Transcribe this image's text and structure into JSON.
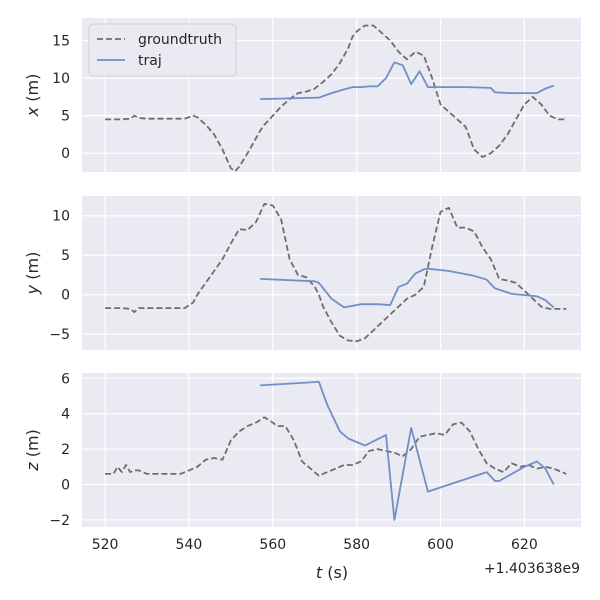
{
  "chart_data": {
    "type": "line",
    "shared_x": {
      "label": "t (s)",
      "label_var": "t",
      "label_unit": " (s)",
      "range": [
        514.5,
        633.5
      ],
      "ticks": [
        520,
        540,
        560,
        580,
        600,
        620
      ],
      "tick_labels": [
        "520",
        "540",
        "560",
        "580",
        "600",
        "620"
      ],
      "offset_text": "+1.403638e9"
    },
    "legend": {
      "placement": "top-left",
      "entries": [
        "groundtruth",
        "traj"
      ]
    },
    "grid": true,
    "colors": {
      "background": "#eaeaf2",
      "grid": "#ffffff",
      "groundtruth": "#6e6e6e",
      "traj": "#6f8fc6"
    },
    "series_styles": {
      "groundtruth": "dashed",
      "traj": "solid"
    },
    "panels": [
      {
        "ylabel": "x (m)",
        "ylabel_var": "x",
        "ylabel_unit": " (m)",
        "ylim": [
          -2.5,
          18.0
        ],
        "yticks": [
          0,
          5,
          10,
          15
        ],
        "ytick_labels": [
          "0",
          "5",
          "10",
          "15"
        ],
        "series": [
          {
            "name": "groundtruth",
            "x": [
              520,
              522,
              524,
              526,
              527,
              528,
              530,
              533,
              536,
              539,
              541,
              542,
              544,
              546,
              548,
              550,
              551,
              552,
              554,
              556,
              557,
              558,
              560,
              562,
              564,
              566,
              568,
              570,
              572,
              574,
              576,
              578,
              579,
              580,
              582,
              584,
              586,
              588,
              590,
              592,
              594,
              596,
              598,
              600,
              602,
              604,
              606,
              607,
              608,
              610,
              612,
              614,
              616,
              618,
              620,
              622,
              624,
              626,
              628,
              630
            ],
            "y": [
              4.5,
              4.5,
              4.5,
              4.6,
              5.0,
              4.7,
              4.6,
              4.6,
              4.6,
              4.6,
              5.0,
              4.8,
              3.8,
              2.5,
              0.5,
              -2.0,
              -2.4,
              -1.8,
              0.0,
              2.0,
              3.0,
              3.8,
              5.0,
              6.2,
              7.2,
              8.0,
              8.2,
              8.6,
              9.5,
              10.5,
              12.0,
              14.0,
              15.5,
              16.2,
              17.0,
              17.0,
              16.0,
              15.0,
              13.5,
              12.5,
              13.5,
              13.0,
              10.0,
              6.5,
              5.5,
              4.5,
              3.5,
              2.0,
              0.5,
              -0.5,
              0.0,
              1.0,
              2.5,
              4.5,
              6.5,
              7.5,
              6.5,
              5.0,
              4.5,
              4.5
            ]
          },
          {
            "name": "traj",
            "x": [
              557,
              571,
              574,
              577,
              579,
              581,
              583,
              585,
              587,
              589,
              591,
              593,
              595,
              597,
              601,
              606,
              612,
              613,
              617,
              620,
              623,
              625,
              627
            ],
            "y": [
              7.2,
              7.4,
              8.0,
              8.5,
              8.8,
              8.8,
              8.9,
              8.9,
              10.0,
              12.1,
              11.7,
              9.2,
              10.9,
              8.8,
              8.8,
              8.8,
              8.7,
              8.1,
              8.0,
              8.0,
              8.0,
              8.6,
              9.0
            ]
          }
        ]
      },
      {
        "ylabel": "y (m)",
        "ylabel_var": "y",
        "ylabel_unit": " (m)",
        "ylim": [
          -7.0,
          12.5
        ],
        "yticks": [
          -5,
          0,
          5,
          10
        ],
        "ytick_labels": [
          "−5",
          "0",
          "5",
          "10"
        ],
        "series": [
          {
            "name": "groundtruth",
            "x": [
              520,
              522,
              524,
              526,
              527,
              528,
              530,
              533,
              536,
              539,
              541,
              542,
              544,
              546,
              548,
              550,
              552,
              554,
              556,
              558,
              560,
              562,
              564,
              566,
              568,
              570,
              571,
              572,
              574,
              576,
              578,
              580,
              582,
              584,
              586,
              588,
              590,
              592,
              594,
              596,
              598,
              600,
              602,
              604,
              606,
              608,
              610,
              612,
              614,
              616,
              618,
              620,
              622,
              624,
              626,
              628,
              630
            ],
            "y": [
              -1.7,
              -1.7,
              -1.7,
              -1.8,
              -2.2,
              -1.7,
              -1.7,
              -1.7,
              -1.7,
              -1.7,
              -1.0,
              0.0,
              1.5,
              3.0,
              4.5,
              6.5,
              8.3,
              8.2,
              9.2,
              11.5,
              11.3,
              9.5,
              4.5,
              2.5,
              2.2,
              1.0,
              0.0,
              -1.5,
              -3.5,
              -5.2,
              -5.8,
              -5.9,
              -5.5,
              -4.5,
              -3.5,
              -2.5,
              -1.5,
              -0.5,
              0.0,
              1.0,
              6.0,
              10.5,
              11.0,
              8.5,
              8.5,
              8.0,
              6.0,
              4.5,
              2.0,
              1.8,
              1.5,
              0.5,
              -0.5,
              -1.5,
              -1.8,
              -1.8,
              -1.8
            ]
          },
          {
            "name": "traj",
            "x": [
              557,
              570,
              571,
              574,
              577,
              581,
              585,
              588,
              590,
              592,
              594,
              596,
              597,
              602,
              608,
              611,
              613,
              617,
              621,
              623,
              625,
              627
            ],
            "y": [
              2.0,
              1.7,
              1.5,
              -0.5,
              -1.6,
              -1.2,
              -1.2,
              -1.3,
              1.0,
              1.4,
              2.7,
              3.2,
              3.3,
              3.0,
              2.4,
              1.9,
              0.8,
              0.1,
              -0.1,
              -0.2,
              -0.7,
              -1.6
            ]
          }
        ]
      },
      {
        "ylabel": "z (m)",
        "ylabel_var": "z",
        "ylabel_unit": " (m)",
        "ylim": [
          -2.4,
          6.3
        ],
        "yticks": [
          -2,
          0,
          2,
          4,
          6
        ],
        "ytick_labels": [
          "−2",
          "0",
          "2",
          "4",
          "6"
        ],
        "series": [
          {
            "name": "groundtruth",
            "x": [
              520,
              522,
              523,
              524,
              525,
              526,
              527,
              528,
              530,
              532,
              535,
              538,
              540,
              542,
              544,
              546,
              548,
              550,
              552,
              554,
              556,
              558,
              560,
              561,
              563,
              565,
              567,
              569,
              571,
              573,
              575,
              577,
              579,
              581,
              583,
              585,
              587,
              589,
              591,
              593,
              595,
              597,
              599,
              601,
              603,
              605,
              607,
              609,
              611,
              613,
              615,
              617,
              619,
              621,
              623,
              625,
              627,
              629,
              630
            ],
            "y": [
              0.6,
              0.6,
              1.0,
              0.7,
              1.1,
              0.7,
              0.8,
              0.8,
              0.6,
              0.6,
              0.6,
              0.6,
              0.8,
              1.0,
              1.4,
              1.5,
              1.4,
              2.5,
              3.0,
              3.3,
              3.5,
              3.8,
              3.5,
              3.3,
              3.3,
              2.5,
              1.3,
              0.9,
              0.5,
              0.7,
              0.9,
              1.1,
              1.1,
              1.3,
              1.9,
              2.0,
              1.9,
              1.8,
              1.6,
              2.0,
              2.7,
              2.8,
              2.9,
              2.8,
              3.4,
              3.5,
              3.0,
              2.0,
              1.2,
              0.9,
              0.7,
              1.2,
              1.0,
              1.1,
              0.9,
              1.0,
              0.9,
              0.7,
              0.6
            ]
          },
          {
            "name": "traj",
            "x": [
              557,
              571,
              573,
              576,
              578,
              582,
              587,
              589,
              593,
              597,
              611,
              613,
              614,
              620,
              623,
              625,
              627
            ],
            "y": [
              5.6,
              5.8,
              4.5,
              3.0,
              2.6,
              2.2,
              2.8,
              -2.0,
              3.2,
              -0.4,
              0.7,
              0.2,
              0.2,
              1.0,
              1.3,
              0.9,
              0.0
            ]
          }
        ]
      }
    ]
  }
}
